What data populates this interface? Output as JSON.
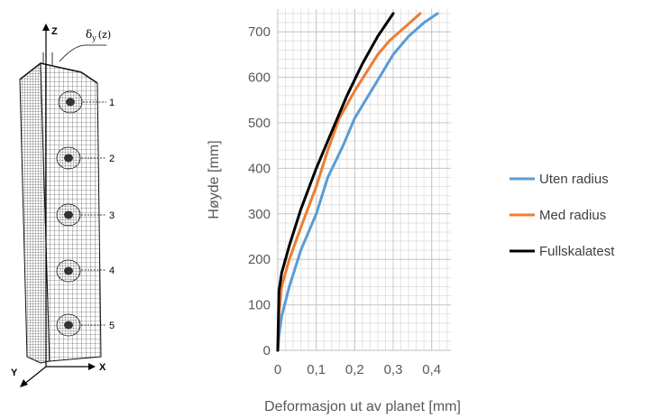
{
  "model": {
    "axes": {
      "z": "Z",
      "x": "X",
      "y": "Y"
    },
    "deformation_label": "δ",
    "deformation_sub": "y",
    "deformation_arg": "(z)",
    "section_labels": [
      "1",
      "2",
      "3",
      "4",
      "5"
    ]
  },
  "chart_data": {
    "type": "line",
    "title": "",
    "xlabel": "Deformasjon ut av planet [mm]",
    "ylabel": "Høyde [mm]",
    "xlim": [
      0,
      0.45
    ],
    "ylim": [
      0,
      750
    ],
    "xticks": [
      0,
      0.1,
      0.2,
      0.3,
      0.4
    ],
    "xtick_labels": [
      "0",
      "0,1",
      "0,2",
      "0,3",
      "0,4"
    ],
    "yticks": [
      0,
      100,
      200,
      300,
      400,
      500,
      600,
      700
    ],
    "ytick_labels": [
      "0",
      "100",
      "200",
      "300",
      "400",
      "500",
      "600",
      "700"
    ],
    "grid": true,
    "legend_position": "right",
    "series": [
      {
        "name": "Uten radius",
        "color": "#5b9bd5",
        "x": [
          0,
          0.003,
          0.01,
          0.03,
          0.06,
          0.1,
          0.13,
          0.17,
          0.2,
          0.25,
          0.3,
          0.34,
          0.38,
          0.415
        ],
        "y": [
          0,
          30,
          75,
          140,
          220,
          300,
          380,
          450,
          510,
          580,
          650,
          690,
          720,
          740
        ]
      },
      {
        "name": "Med radius",
        "color": "#ed7d31",
        "x": [
          0,
          0.003,
          0.01,
          0.03,
          0.06,
          0.1,
          0.13,
          0.16,
          0.2,
          0.23,
          0.26,
          0.29,
          0.33,
          0.37
        ],
        "y": [
          0,
          80,
          140,
          200,
          270,
          360,
          440,
          510,
          570,
          610,
          650,
          680,
          710,
          740
        ]
      },
      {
        "name": "Fullskalatest",
        "color": "#000000",
        "x": [
          0,
          0.003,
          0.01,
          0.03,
          0.06,
          0.1,
          0.14,
          0.18,
          0.22,
          0.26,
          0.3
        ],
        "y": [
          0,
          130,
          170,
          230,
          310,
          400,
          480,
          560,
          630,
          690,
          740
        ]
      }
    ]
  }
}
